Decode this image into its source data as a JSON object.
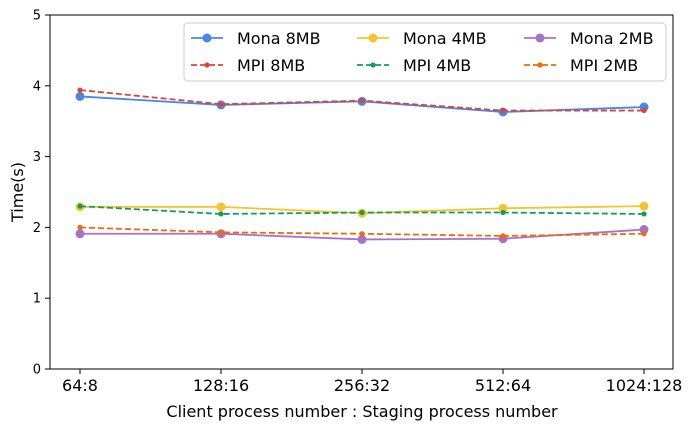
{
  "chart_data": {
    "type": "line",
    "title": "",
    "xlabel": "Client process number : Staging process number",
    "ylabel": "Time(s)",
    "categories": [
      "64:8",
      "128:16",
      "256:32",
      "512:64",
      "1024:128"
    ],
    "ylim": [
      0,
      5
    ],
    "yticks": [
      "0",
      "1",
      "2",
      "3",
      "4",
      "5"
    ],
    "grid": false,
    "legend_position": "top-right",
    "series": [
      {
        "name": "Mona 8MB",
        "values": [
          3.85,
          3.73,
          3.78,
          3.63,
          3.7
        ],
        "color": "#4a86e8",
        "style": "solid",
        "marker": "large"
      },
      {
        "name": "MPI 8MB",
        "values": [
          3.94,
          3.74,
          3.79,
          3.65,
          3.65
        ],
        "color": "#db4437",
        "style": "dashed",
        "marker": "small"
      },
      {
        "name": "Mona 4MB",
        "values": [
          2.29,
          2.29,
          2.2,
          2.27,
          2.3
        ],
        "color": "#f4c430",
        "style": "solid",
        "marker": "large"
      },
      {
        "name": "MPI 4MB",
        "values": [
          2.3,
          2.19,
          2.21,
          2.21,
          2.19
        ],
        "color": "#0f9d58",
        "style": "dashed",
        "marker": "small"
      },
      {
        "name": "Mona 2MB",
        "values": [
          1.91,
          1.91,
          1.83,
          1.84,
          1.97
        ],
        "color": "#a86fcb",
        "style": "solid",
        "marker": "large"
      },
      {
        "name": "MPI 2MB",
        "values": [
          2.0,
          1.93,
          1.91,
          1.88,
          1.91
        ],
        "color": "#ef6c00",
        "style": "dashed",
        "marker": "small"
      }
    ]
  }
}
